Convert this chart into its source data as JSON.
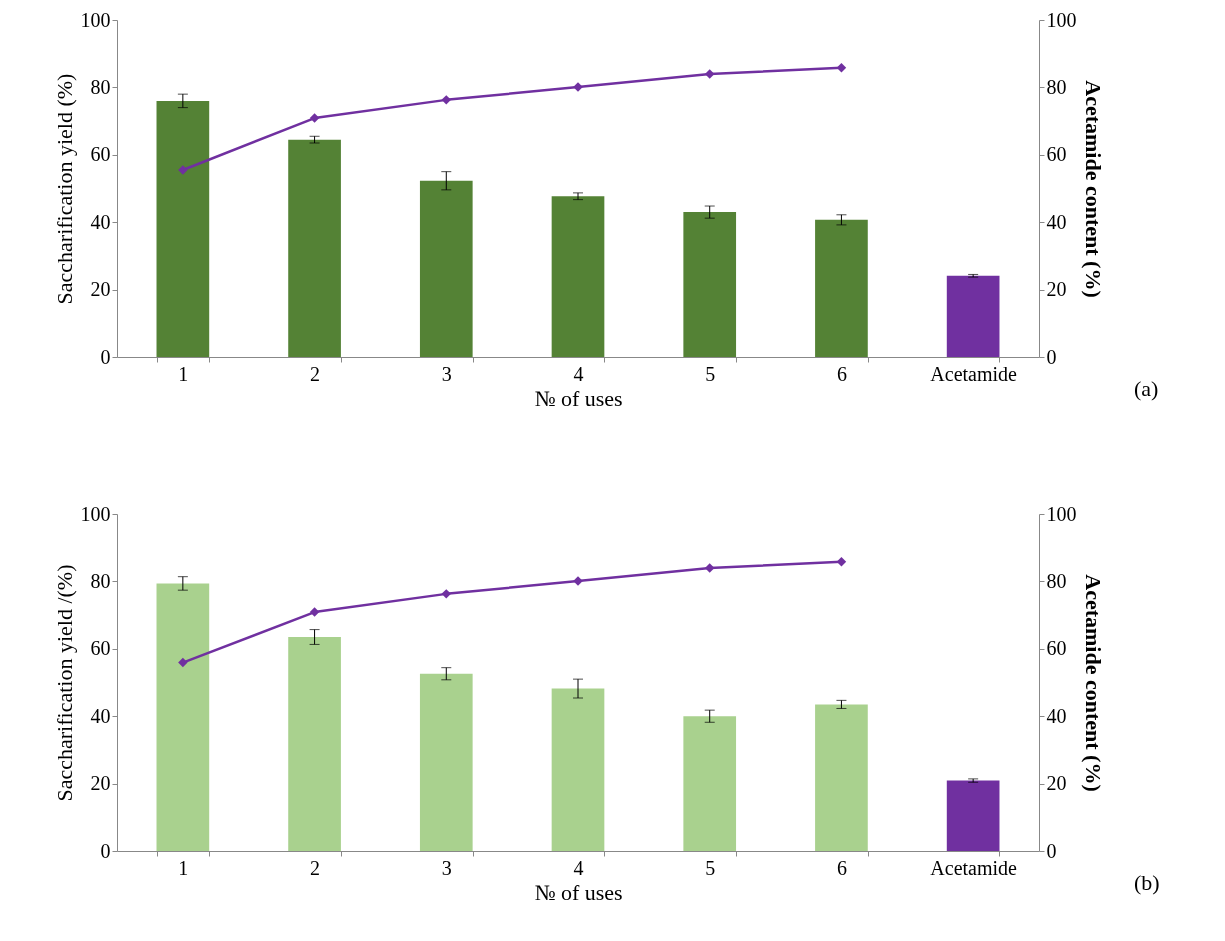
{
  "chart_data": [
    {
      "type": "bar",
      "xlabel": "№ of uses",
      "ylabel": "Saccharification yield (%)",
      "y2label": "Acetamide content (%)",
      "annotations": [
        "(a)"
      ],
      "categories": [
        "1",
        "2",
        "3",
        "4",
        "5",
        "6",
        "Acetamide"
      ],
      "series": [
        {
          "colors": [
            "#548235",
            "#548235",
            "#548235",
            "#548235",
            "#548235",
            "#548235",
            "#7030a0"
          ],
          "values": [
            76,
            64.5,
            52.3,
            47.7,
            43,
            40.7,
            24.1
          ],
          "errors": [
            2,
            1,
            2.7,
            1,
            1.8,
            1.5,
            0.4
          ]
        },
        {
          "type": "line",
          "axis": "y2",
          "color": "#7030a0",
          "values": [
            55.5,
            70.9,
            76.3,
            80.1,
            84,
            85.8,
            null
          ]
        }
      ],
      "ylim": [
        0,
        100
      ],
      "yticks": [
        0,
        20,
        40,
        60,
        80,
        100
      ],
      "y2lim": [
        0,
        100
      ],
      "y2ticks": [
        0,
        20,
        40,
        60,
        80,
        100
      ],
      "marker": "diamond",
      "grid": false,
      "legend": false
    },
    {
      "type": "bar",
      "xlabel": "№ of uses",
      "ylabel": "Saccharification yield /(%)",
      "y2label": "Acetamide content (%)",
      "annotations": [
        "(b)"
      ],
      "categories": [
        "1",
        "2",
        "3",
        "4",
        "5",
        "6",
        "Acetamide"
      ],
      "series": [
        {
          "colors": [
            "#a9d18e",
            "#a9d18e",
            "#a9d18e",
            "#a9d18e",
            "#a9d18e",
            "#a9d18e",
            "#7030a0"
          ],
          "values": [
            79.4,
            63.5,
            52.6,
            48.2,
            40,
            43.5,
            20.9
          ],
          "errors": [
            2,
            2.2,
            1.8,
            2.8,
            1.8,
            1.2,
            0.5
          ]
        },
        {
          "type": "line",
          "axis": "y2",
          "color": "#7030a0",
          "values": [
            55.9,
            70.9,
            76.3,
            80.1,
            84,
            85.8,
            null
          ]
        }
      ],
      "ylim": [
        0,
        100
      ],
      "yticks": [
        0,
        20,
        40,
        60,
        80,
        100
      ],
      "y2lim": [
        0,
        100
      ],
      "y2ticks": [
        0,
        20,
        40,
        60,
        80,
        100
      ],
      "marker": "diamond",
      "grid": false,
      "legend": false
    }
  ]
}
